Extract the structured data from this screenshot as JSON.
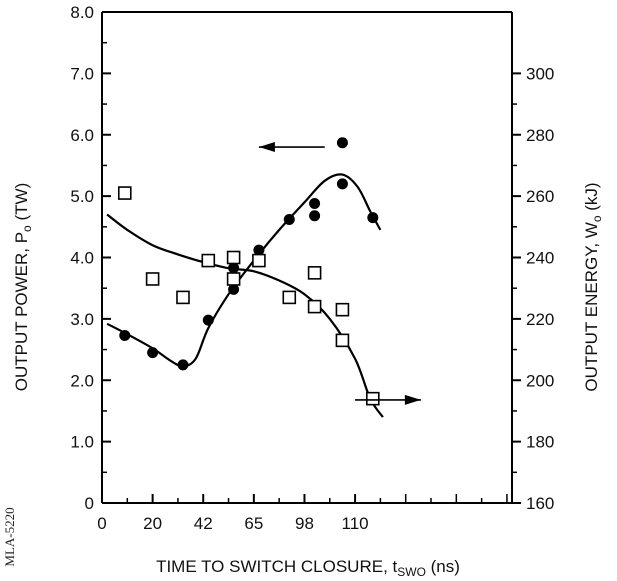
{
  "chart_data": {
    "type": "scatter",
    "xlabel": "TIME TO SWITCH CLOSURE, t",
    "xlabel_sub": "SWO",
    "xlabel_unit": " (ns)",
    "ylabel_left": "OUTPUT POWER, P",
    "ylabel_left_sub": "o",
    "ylabel_left_unit": " (TW)",
    "ylabel_right": "OUTPUT ENERGY, W",
    "ylabel_right_sub": "o",
    "ylabel_right_unit": " (kJ)",
    "side_note": "MLA-5220",
    "x_ticks": [
      "0",
      "20",
      "42",
      "65",
      "98",
      "110"
    ],
    "x_tick_positions": [
      0,
      1,
      2,
      3,
      4,
      5
    ],
    "xlim": [
      0,
      8.1
    ],
    "ylim_left": [
      0,
      8.0
    ],
    "y_ticks_left": [
      "0",
      "1.0",
      "2.0",
      "3.0",
      "4.0",
      "5.0",
      "6.0",
      "7.0",
      "8.0"
    ],
    "ylim_right": [
      160,
      320
    ],
    "y_ticks_right": [
      "160",
      "180",
      "200",
      "220",
      "240",
      "260",
      "280",
      "300"
    ],
    "series": [
      {
        "axis": "left",
        "marker": "filled-circle",
        "points": [
          [
            0.45,
            2.73
          ],
          [
            1.0,
            2.45
          ],
          [
            1.6,
            2.25
          ],
          [
            2.1,
            2.98
          ],
          [
            2.6,
            3.48
          ],
          [
            2.6,
            3.83
          ],
          [
            3.1,
            4.12
          ],
          [
            3.7,
            4.62
          ],
          [
            4.2,
            4.68
          ],
          [
            4.2,
            4.88
          ],
          [
            4.75,
            5.2
          ],
          [
            4.75,
            5.87
          ],
          [
            5.35,
            4.65
          ]
        ],
        "curve": [
          [
            0.1,
            2.92
          ],
          [
            0.5,
            2.75
          ],
          [
            1.0,
            2.52
          ],
          [
            1.35,
            2.32
          ],
          [
            1.6,
            2.23
          ],
          [
            1.85,
            2.35
          ],
          [
            2.1,
            2.85
          ],
          [
            2.5,
            3.4
          ],
          [
            3.0,
            3.95
          ],
          [
            3.5,
            4.45
          ],
          [
            4.0,
            4.9
          ],
          [
            4.4,
            5.25
          ],
          [
            4.75,
            5.35
          ],
          [
            5.05,
            5.15
          ],
          [
            5.3,
            4.75
          ],
          [
            5.5,
            4.45
          ]
        ]
      },
      {
        "axis": "right",
        "marker": "open-square",
        "points": [
          [
            0.45,
            261
          ],
          [
            1.0,
            233
          ],
          [
            1.6,
            227
          ],
          [
            2.1,
            239
          ],
          [
            2.6,
            240
          ],
          [
            2.6,
            233
          ],
          [
            3.1,
            239
          ],
          [
            3.7,
            227
          ],
          [
            4.2,
            235
          ],
          [
            4.2,
            224
          ],
          [
            4.75,
            223
          ],
          [
            4.75,
            213
          ],
          [
            5.35,
            194
          ]
        ],
        "curve": [
          [
            0.1,
            254
          ],
          [
            0.5,
            249
          ],
          [
            1.0,
            244
          ],
          [
            1.5,
            241
          ],
          [
            2.0,
            238.5
          ],
          [
            2.5,
            236.5
          ],
          [
            3.0,
            235.5
          ],
          [
            3.5,
            232.5
          ],
          [
            4.0,
            228
          ],
          [
            4.5,
            220
          ],
          [
            5.0,
            207
          ],
          [
            5.3,
            194
          ],
          [
            5.55,
            188
          ]
        ]
      }
    ],
    "annotations": [
      {
        "type": "arrow",
        "axis": "left",
        "from": [
          4.4,
          5.8
        ],
        "to": [
          3.1,
          5.8
        ]
      },
      {
        "type": "arrow",
        "axis": "left",
        "from": [
          5.0,
          1.68
        ],
        "to": [
          6.3,
          1.68
        ]
      }
    ]
  }
}
